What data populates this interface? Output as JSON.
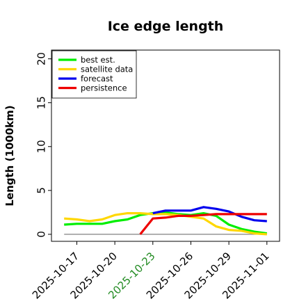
{
  "chart_data": {
    "type": "line",
    "title": "Ice edge length",
    "xlabel": "",
    "ylabel": "Length (1000km)",
    "ylim": [
      -0.8,
      21
    ],
    "xlim": [
      "2025-10-15",
      "2025-11-02"
    ],
    "yticks": [
      "0",
      "5",
      "10",
      "15",
      "20"
    ],
    "xticks": [
      {
        "date": "2025-10-17",
        "label": "2025-10-17",
        "color": "#000000"
      },
      {
        "date": "2025-10-20",
        "label": "2025-10-20",
        "color": "#000000"
      },
      {
        "date": "2025-10-23",
        "label": "2025-10-23",
        "color": "#228b22"
      },
      {
        "date": "2025-10-26",
        "label": "2025-10-26",
        "color": "#000000"
      },
      {
        "date": "2025-10-29",
        "label": "2025-10-29",
        "color": "#000000"
      },
      {
        "date": "2025-11-01",
        "label": "2025-11-01",
        "color": "#000000"
      }
    ],
    "legend_position": "top-left",
    "grid": false,
    "baseline": {
      "y": 0,
      "from": "2025-10-16",
      "to": "2025-11-01",
      "color": "#808080"
    },
    "series": [
      {
        "name": "best est.",
        "color": "#00ee00",
        "x": [
          "2025-10-16",
          "2025-10-17",
          "2025-10-18",
          "2025-10-19",
          "2025-10-20",
          "2025-10-21",
          "2025-10-22",
          "2025-10-23",
          "2025-10-24",
          "2025-10-25",
          "2025-10-26",
          "2025-10-27",
          "2025-10-28",
          "2025-10-29",
          "2025-10-30",
          "2025-10-31",
          "2025-11-01"
        ],
        "values": [
          1.1,
          1.2,
          1.2,
          1.2,
          1.5,
          1.7,
          2.2,
          2.4,
          2.5,
          2.3,
          2.2,
          2.4,
          2.1,
          1.1,
          0.6,
          0.3,
          0.1
        ]
      },
      {
        "name": "satellite data",
        "color": "#ffd700",
        "x": [
          "2025-10-16",
          "2025-10-17",
          "2025-10-18",
          "2025-10-19",
          "2025-10-20",
          "2025-10-21",
          "2025-10-22",
          "2025-10-23",
          "2025-10-24",
          "2025-10-25",
          "2025-10-26",
          "2025-10-27",
          "2025-10-28",
          "2025-10-29",
          "2025-10-30",
          "2025-10-31",
          "2025-11-01"
        ],
        "values": [
          1.8,
          1.7,
          1.5,
          1.7,
          2.2,
          2.4,
          2.4,
          2.3,
          2.3,
          2.2,
          2.0,
          1.8,
          0.9,
          0.5,
          0.4,
          0.1,
          0.0
        ]
      },
      {
        "name": "forecast",
        "color": "#0000ee",
        "x": [
          "2025-10-23",
          "2025-10-24",
          "2025-10-25",
          "2025-10-26",
          "2025-10-27",
          "2025-10-28",
          "2025-10-29",
          "2025-10-30",
          "2025-10-31",
          "2025-11-01"
        ],
        "values": [
          2.4,
          2.7,
          2.7,
          2.7,
          3.1,
          2.9,
          2.6,
          2.0,
          1.6,
          1.5
        ]
      },
      {
        "name": "persistence",
        "color": "#ee0000",
        "x": [
          "2025-10-22",
          "2025-10-23",
          "2025-10-24",
          "2025-10-25",
          "2025-10-26",
          "2025-10-27",
          "2025-10-28",
          "2025-10-29",
          "2025-10-30",
          "2025-10-31",
          "2025-11-01"
        ],
        "values": [
          0.0,
          1.8,
          1.9,
          2.1,
          2.1,
          2.2,
          2.3,
          2.3,
          2.3,
          2.3,
          2.3
        ]
      }
    ]
  }
}
